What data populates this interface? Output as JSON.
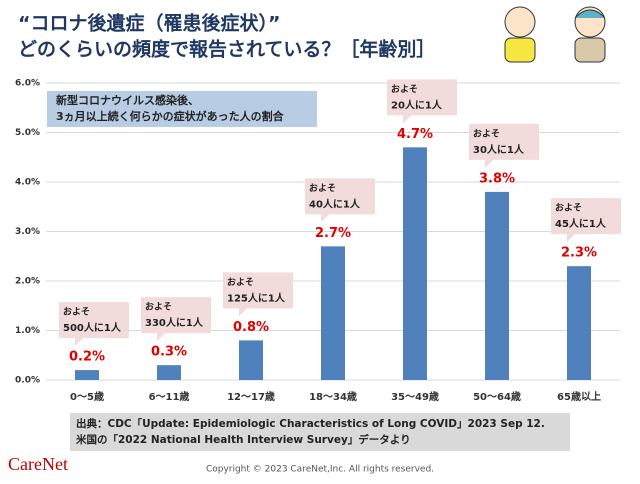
{
  "chart_data": {
    "type": "bar",
    "title": [
      "“コロナ後遺症（罹患後症状）”",
      "どのくらいの頻度で報告されている？［年齢別］"
    ],
    "subtitle": [
      "新型コロナウイルス感染後、",
      "3ヵ月以上続く何らかの症状があった人の割合"
    ],
    "categories": [
      "0〜5歳",
      "6〜11歳",
      "12〜17歳",
      "18〜34歳",
      "35〜49歳",
      "50〜64歳",
      "65歳以上"
    ],
    "values": [
      0.2,
      0.3,
      0.8,
      2.7,
      4.7,
      3.8,
      2.3
    ],
    "value_labels": [
      "0.2%",
      "0.3%",
      "0.8%",
      "2.7%",
      "4.7%",
      "3.8%",
      "2.3%"
    ],
    "callouts": [
      [
        "およそ",
        "500人に1人"
      ],
      [
        "およそ",
        "330人に1人"
      ],
      [
        "およそ",
        "125人に1人"
      ],
      [
        "およそ",
        "40人に1人"
      ],
      [
        "およそ",
        "20人に1人"
      ],
      [
        "およそ",
        "30人に1人"
      ],
      [
        "およそ",
        "45人に1人"
      ]
    ],
    "color": "#4f81bd",
    "ylim": [
      0,
      6
    ],
    "yticks": [
      {
        "value": 0,
        "label": "0.0%"
      },
      {
        "value": 1,
        "label": "1.0%"
      },
      {
        "value": 2,
        "label": "2.0%"
      },
      {
        "value": 3,
        "label": "3.0%"
      },
      {
        "value": 4,
        "label": "4.0%"
      },
      {
        "value": 5,
        "label": "5.0%"
      },
      {
        "value": 6,
        "label": "6.0%"
      }
    ],
    "grid": true,
    "source": [
      "出典：CDC「Update: Epidemiologic Characteristics of Long COVID」2023 Sep 12.",
      "米国の「2022 National Health Interview Survey」データより"
    ],
    "logo": "CareNet",
    "copyright": "Copyright © 2023 CareNet,Inc. All rights reserved."
  }
}
